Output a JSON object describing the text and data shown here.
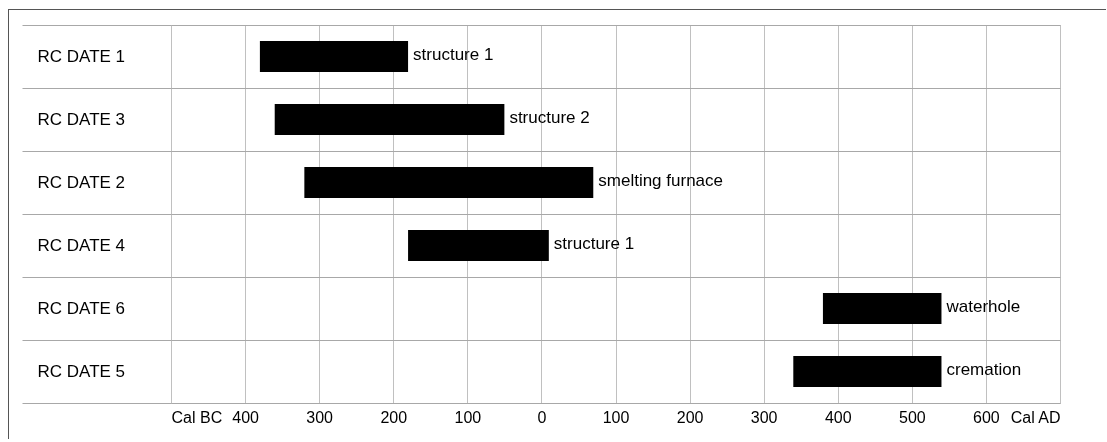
{
  "chart_data": {
    "type": "bar",
    "orientation": "horizontal",
    "color": "#000000",
    "categories": [
      "RC DATE 1",
      "RC DATE 3",
      "RC DATE 2",
      "RC DATE 4",
      "RC DATE 6",
      "RC DATE 5"
    ],
    "base": [
      -380,
      -360,
      -320,
      -180,
      380,
      340
    ],
    "values": [
      200,
      310,
      390,
      190,
      160,
      200
    ],
    "xlim": [
      -500,
      700
    ],
    "xticks": [
      {
        "value": -500,
        "label": "Cal BC"
      },
      {
        "value": -400,
        "label": "400"
      },
      {
        "value": -300,
        "label": "300"
      },
      {
        "value": -200,
        "label": "200"
      },
      {
        "value": -100,
        "label": "100"
      },
      0,
      100,
      200,
      300,
      400,
      500,
      600,
      {
        "value": 700,
        "label": "Cal AD"
      }
    ],
    "annotations": [
      {
        "text": "structure 1",
        "x": -180,
        "y": "RC DATE 1"
      },
      {
        "text": "structure 2",
        "x": -50,
        "y": "RC DATE 3"
      },
      {
        "text": "smelting furnace",
        "x": 70,
        "y": "RC DATE 2"
      },
      {
        "text": "structure 1",
        "x": 10,
        "y": "RC DATE 4"
      },
      {
        "text": "waterhole",
        "x": 540,
        "y": "RC DATE 6"
      },
      {
        "text": "cremation",
        "x": 540,
        "y": "RC DATE 5"
      }
    ],
    "grid": true
  }
}
